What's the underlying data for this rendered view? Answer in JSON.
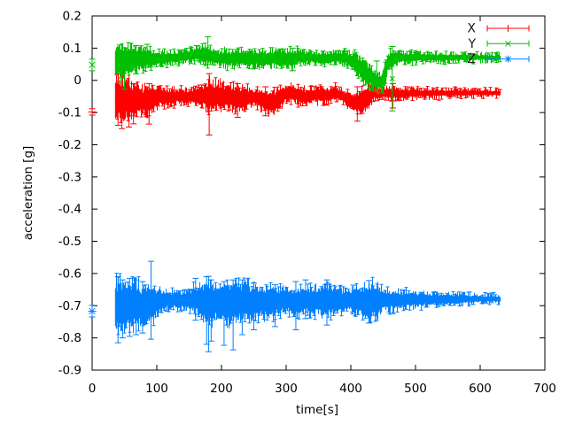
{
  "chart_data": {
    "type": "line",
    "subtype": "errorbar-time-series",
    "title": "",
    "xlabel": "time[s]",
    "ylabel": "acceleration [g]",
    "xlim": [
      0,
      700
    ],
    "ylim": [
      -0.9,
      0.2
    ],
    "grid": false,
    "background": "#ffffff",
    "border_color": "#000000",
    "legend": {
      "position": "top-right-inside",
      "entries": [
        "X",
        "Y",
        "Z"
      ]
    },
    "xticks": [
      {
        "v": 0,
        "label": "0"
      },
      {
        "v": 100,
        "label": "100"
      },
      {
        "v": 200,
        "label": "200"
      },
      {
        "v": 300,
        "label": "300"
      },
      {
        "v": 400,
        "label": "400"
      },
      {
        "v": 500,
        "label": "500"
      },
      {
        "v": 600,
        "label": "600"
      },
      {
        "v": 700,
        "label": "700"
      }
    ],
    "yticks": [
      {
        "v": 0.2,
        "label": "0.2"
      },
      {
        "v": 0.1,
        "label": "0.1"
      },
      {
        "v": 0,
        "label": "0"
      },
      {
        "v": -0.1,
        "label": "-0.1"
      },
      {
        "v": -0.2,
        "label": "-0.2"
      },
      {
        "v": -0.3,
        "label": "-0.3"
      },
      {
        "v": -0.4,
        "label": "-0.4"
      },
      {
        "v": -0.5,
        "label": "-0.5"
      },
      {
        "v": -0.6,
        "label": "-0.6"
      },
      {
        "v": -0.7,
        "label": "-0.7"
      },
      {
        "v": -0.8,
        "label": "-0.8"
      },
      {
        "v": -0.9,
        "label": "-0.9"
      }
    ],
    "series": [
      {
        "name": "X",
        "color": "#ff0000",
        "marker": "plus",
        "initial_point": {
          "t": 0,
          "value": -0.098,
          "err": 0.01
        },
        "band": [
          [
            35,
            -0.12,
            0.0
          ],
          [
            42,
            -0.125,
            0.01
          ],
          [
            48,
            -0.13,
            -0.01
          ],
          [
            55,
            -0.115,
            0.02
          ],
          [
            60,
            -0.12,
            -0.02
          ],
          [
            70,
            -0.1,
            -0.02
          ],
          [
            80,
            -0.1,
            -0.025
          ],
          [
            90,
            -0.105,
            -0.02
          ],
          [
            100,
            -0.08,
            -0.025
          ],
          [
            115,
            -0.075,
            -0.03
          ],
          [
            130,
            -0.07,
            -0.028
          ],
          [
            145,
            -0.072,
            -0.03
          ],
          [
            160,
            -0.075,
            -0.025
          ],
          [
            172,
            -0.08,
            -0.02
          ],
          [
            181,
            -0.1,
            0.005
          ],
          [
            190,
            -0.085,
            -0.01
          ],
          [
            205,
            -0.08,
            -0.015
          ],
          [
            220,
            -0.09,
            -0.02
          ],
          [
            235,
            -0.085,
            -0.025
          ],
          [
            250,
            -0.075,
            -0.03
          ],
          [
            265,
            -0.09,
            -0.03
          ],
          [
            280,
            -0.1,
            -0.035
          ],
          [
            295,
            -0.07,
            -0.02
          ],
          [
            310,
            -0.06,
            -0.015
          ],
          [
            325,
            -0.075,
            -0.03
          ],
          [
            340,
            -0.07,
            -0.025
          ],
          [
            355,
            -0.065,
            -0.02
          ],
          [
            365,
            -0.07,
            -0.028
          ],
          [
            375,
            -0.06,
            -0.02
          ],
          [
            385,
            -0.065,
            -0.03
          ],
          [
            395,
            -0.08,
            -0.035
          ],
          [
            405,
            -0.1,
            -0.04
          ],
          [
            415,
            -0.105,
            -0.035
          ],
          [
            425,
            -0.09,
            -0.025
          ],
          [
            435,
            -0.06,
            -0.02
          ],
          [
            450,
            -0.055,
            -0.025
          ],
          [
            470,
            -0.055,
            -0.027
          ],
          [
            500,
            -0.052,
            -0.028
          ],
          [
            550,
            -0.05,
            -0.03
          ],
          [
            600,
            -0.048,
            -0.03
          ],
          [
            630,
            -0.048,
            -0.032
          ]
        ],
        "spikes": [
          [
            40,
            -0.14,
            0.02
          ],
          [
            46,
            -0.15,
            0.035
          ],
          [
            57,
            -0.145,
            0.03
          ],
          [
            64,
            -0.135,
            -0.01
          ],
          [
            88,
            -0.136,
            -0.01
          ],
          [
            181,
            -0.17,
            0.021
          ],
          [
            225,
            -0.115,
            -0.01
          ],
          [
            268,
            -0.11,
            -0.02
          ],
          [
            410,
            -0.127,
            -0.02
          ],
          [
            465,
            -0.086,
            -0.01
          ]
        ]
      },
      {
        "name": "Y",
        "color": "#00bf00",
        "marker": "cross",
        "initial_point": {
          "t": 0,
          "value": 0.048,
          "err": 0.018
        },
        "band": [
          [
            35,
            0.02,
            0.105
          ],
          [
            45,
            0.015,
            0.1
          ],
          [
            55,
            0.02,
            0.1
          ],
          [
            65,
            0.03,
            0.1
          ],
          [
            75,
            0.035,
            0.095
          ],
          [
            85,
            0.04,
            0.095
          ],
          [
            95,
            0.045,
            0.09
          ],
          [
            105,
            0.05,
            0.085
          ],
          [
            120,
            0.052,
            0.085
          ],
          [
            135,
            0.055,
            0.09
          ],
          [
            150,
            0.06,
            0.095
          ],
          [
            160,
            0.06,
            0.1
          ],
          [
            170,
            0.058,
            0.105
          ],
          [
            180,
            0.05,
            0.1
          ],
          [
            195,
            0.048,
            0.09
          ],
          [
            210,
            0.045,
            0.09
          ],
          [
            230,
            0.045,
            0.092
          ],
          [
            250,
            0.045,
            0.09
          ],
          [
            270,
            0.042,
            0.09
          ],
          [
            285,
            0.045,
            0.092
          ],
          [
            300,
            0.038,
            0.09
          ],
          [
            310,
            0.042,
            0.095
          ],
          [
            320,
            0.052,
            0.09
          ],
          [
            340,
            0.055,
            0.085
          ],
          [
            360,
            0.05,
            0.085
          ],
          [
            380,
            0.055,
            0.088
          ],
          [
            395,
            0.048,
            0.085
          ],
          [
            405,
            0.03,
            0.08
          ],
          [
            415,
            0.008,
            0.07
          ],
          [
            425,
            -0.012,
            0.05
          ],
          [
            435,
            -0.025,
            0.03
          ],
          [
            445,
            -0.03,
            0.015
          ],
          [
            452,
            -0.018,
            0.05
          ],
          [
            458,
            0.04,
            0.085
          ],
          [
            470,
            0.055,
            0.085
          ],
          [
            500,
            0.058,
            0.084
          ],
          [
            550,
            0.06,
            0.082
          ],
          [
            600,
            0.062,
            0.08
          ],
          [
            630,
            0.062,
            0.078
          ]
        ],
        "spikes": [
          [
            43,
            -0.005,
            0.11
          ],
          [
            50,
            -0.028,
            0.1
          ],
          [
            68,
            0.02,
            0.108
          ],
          [
            85,
            0.04,
            0.112
          ],
          [
            162,
            0.06,
            0.108
          ],
          [
            179,
            0.049,
            0.135
          ],
          [
            310,
            0.03,
            0.1
          ],
          [
            440,
            -0.035,
            0.06
          ],
          [
            464,
            -0.095,
            0.105
          ]
        ]
      },
      {
        "name": "Z",
        "color": "#0080ff",
        "marker": "asterisk",
        "initial_point": {
          "t": 0,
          "value": -0.717,
          "err": 0.018
        },
        "band": [
          [
            35,
            -0.77,
            -0.63
          ],
          [
            40,
            -0.78,
            -0.625
          ],
          [
            48,
            -0.775,
            -0.63
          ],
          [
            55,
            -0.77,
            -0.635
          ],
          [
            65,
            -0.765,
            -0.63
          ],
          [
            75,
            -0.76,
            -0.64
          ],
          [
            85,
            -0.755,
            -0.64
          ],
          [
            95,
            -0.74,
            -0.645
          ],
          [
            105,
            -0.715,
            -0.65
          ],
          [
            115,
            -0.71,
            -0.655
          ],
          [
            130,
            -0.705,
            -0.658
          ],
          [
            145,
            -0.71,
            -0.655
          ],
          [
            155,
            -0.72,
            -0.645
          ],
          [
            165,
            -0.725,
            -0.64
          ],
          [
            178,
            -0.75,
            -0.625
          ],
          [
            186,
            -0.745,
            -0.63
          ],
          [
            195,
            -0.73,
            -0.64
          ],
          [
            205,
            -0.745,
            -0.635
          ],
          [
            215,
            -0.75,
            -0.63
          ],
          [
            225,
            -0.745,
            -0.635
          ],
          [
            235,
            -0.74,
            -0.63
          ],
          [
            245,
            -0.745,
            -0.64
          ],
          [
            255,
            -0.735,
            -0.64
          ],
          [
            265,
            -0.73,
            -0.645
          ],
          [
            275,
            -0.735,
            -0.64
          ],
          [
            285,
            -0.725,
            -0.645
          ],
          [
            300,
            -0.72,
            -0.65
          ],
          [
            315,
            -0.73,
            -0.645
          ],
          [
            330,
            -0.72,
            -0.648
          ],
          [
            345,
            -0.725,
            -0.645
          ],
          [
            360,
            -0.73,
            -0.64
          ],
          [
            375,
            -0.72,
            -0.65
          ],
          [
            390,
            -0.715,
            -0.652
          ],
          [
            405,
            -0.72,
            -0.648
          ],
          [
            418,
            -0.73,
            -0.64
          ],
          [
            428,
            -0.745,
            -0.628
          ],
          [
            438,
            -0.735,
            -0.635
          ],
          [
            450,
            -0.715,
            -0.65
          ],
          [
            465,
            -0.71,
            -0.655
          ],
          [
            480,
            -0.705,
            -0.658
          ],
          [
            500,
            -0.7,
            -0.66
          ],
          [
            520,
            -0.698,
            -0.662
          ],
          [
            545,
            -0.695,
            -0.664
          ],
          [
            570,
            -0.692,
            -0.666
          ],
          [
            600,
            -0.69,
            -0.668
          ],
          [
            630,
            -0.688,
            -0.67
          ]
        ],
        "spikes": [
          [
            40,
            -0.815,
            -0.61
          ],
          [
            47,
            -0.8,
            -0.62
          ],
          [
            58,
            -0.795,
            -0.615
          ],
          [
            68,
            -0.79,
            -0.62
          ],
          [
            78,
            -0.785,
            -0.625
          ],
          [
            91,
            -0.804,
            -0.562
          ],
          [
            160,
            -0.745,
            -0.615
          ],
          [
            177,
            -0.82,
            -0.61
          ],
          [
            180,
            -0.843,
            -0.609
          ],
          [
            184,
            -0.81,
            -0.62
          ],
          [
            204,
            -0.823,
            -0.625
          ],
          [
            218,
            -0.837,
            -0.62
          ],
          [
            232,
            -0.79,
            -0.62
          ],
          [
            250,
            -0.775,
            -0.63
          ],
          [
            283,
            -0.765,
            -0.635
          ],
          [
            315,
            -0.775,
            -0.625
          ],
          [
            330,
            -0.74,
            -0.62
          ],
          [
            363,
            -0.76,
            -0.62
          ],
          [
            404,
            -0.72,
            -0.636
          ],
          [
            428,
            -0.754,
            -0.622
          ]
        ]
      }
    ]
  }
}
